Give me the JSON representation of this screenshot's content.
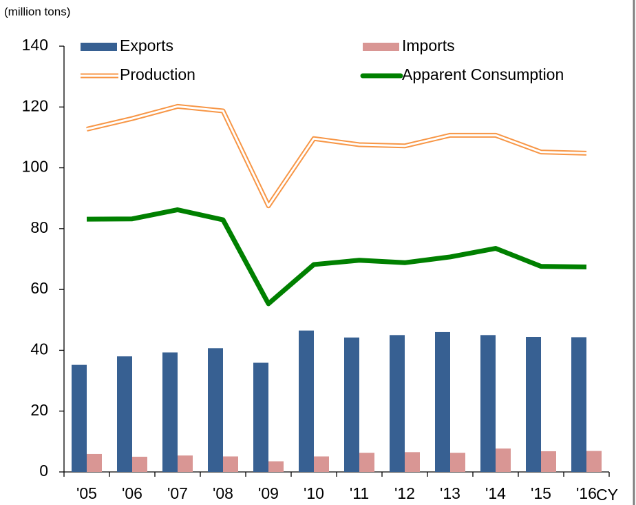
{
  "chart_data": {
    "type": "bar",
    "y_label": "(million tons)",
    "x_label": "CY",
    "categories": [
      "'05",
      "'06",
      "'07",
      "'08",
      "'09",
      "'10",
      "'11",
      "'12",
      "'13",
      "'14",
      "'15",
      "'16"
    ],
    "series": [
      {
        "name": "Exports",
        "type": "bar",
        "color": "#376092",
        "values": [
          35.2,
          38.0,
          39.3,
          40.7,
          35.9,
          46.5,
          44.2,
          45.0,
          46.0,
          45.0,
          44.4,
          44.3
        ]
      },
      {
        "name": "Imports",
        "type": "bar",
        "color": "#d99694",
        "values": [
          5.9,
          5.0,
          5.4,
          5.1,
          3.5,
          5.1,
          6.3,
          6.5,
          6.3,
          7.7,
          6.8,
          6.9
        ]
      },
      {
        "name": "Production",
        "type": "line",
        "line_style": "double",
        "color": "#f79646",
        "values": [
          112.7,
          116.2,
          120.2,
          118.7,
          87.5,
          109.6,
          107.6,
          107.2,
          110.7,
          110.7,
          105.2,
          104.8
        ]
      },
      {
        "name": "Apparent Consumption",
        "type": "line",
        "line_style": "solid",
        "color": "#008000",
        "values": [
          83.1,
          83.2,
          86.2,
          82.9,
          55.3,
          68.2,
          69.6,
          68.8,
          70.7,
          73.5,
          67.6,
          67.4
        ]
      }
    ],
    "ylim": [
      0,
      140
    ],
    "yticks": [
      0,
      20,
      40,
      60,
      80,
      100,
      120,
      140
    ],
    "grid": false
  }
}
